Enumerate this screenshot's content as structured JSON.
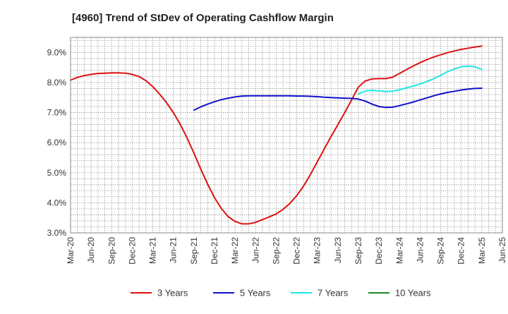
{
  "chart_data": {
    "type": "line",
    "title": "[4960]  Trend of StDev of Operating Cashflow Margin",
    "xlabel": "",
    "ylabel": "",
    "ylim": [
      3.0,
      9.5
    ],
    "y_ticks": [
      "3.0%",
      "4.0%",
      "5.0%",
      "6.0%",
      "7.0%",
      "8.0%",
      "9.0%"
    ],
    "y_tick_values": [
      3.0,
      4.0,
      5.0,
      6.0,
      7.0,
      8.0,
      9.0
    ],
    "x_ticks": [
      "Mar-20",
      "Jun-20",
      "Sep-20",
      "Dec-20",
      "Mar-21",
      "Jun-21",
      "Sep-21",
      "Dec-21",
      "Mar-22",
      "Jun-22",
      "Sep-22",
      "Dec-22",
      "Mar-23",
      "Jun-23",
      "Sep-23",
      "Dec-23",
      "Mar-24",
      "Jun-24",
      "Sep-24",
      "Dec-24",
      "Mar-25",
      "Jun-25"
    ],
    "grid": true,
    "legend_position": "bottom",
    "series": [
      {
        "name": "3 Years",
        "color": "#dd1111",
        "x": [
          "Mar-20",
          "Apr-20",
          "May-20",
          "Jun-20",
          "Jul-20",
          "Aug-20",
          "Sep-20",
          "Oct-20",
          "Nov-20",
          "Dec-20",
          "Jan-21",
          "Feb-21",
          "Mar-21",
          "Apr-21",
          "May-21",
          "Jun-21",
          "Jul-21",
          "Aug-21",
          "Sep-21",
          "Oct-21",
          "Nov-21",
          "Dec-21",
          "Jan-22",
          "Feb-22",
          "Mar-22",
          "Apr-22",
          "May-22",
          "Jun-22",
          "Jul-22",
          "Aug-22",
          "Sep-22",
          "Oct-22",
          "Nov-22",
          "Dec-22",
          "Jan-23",
          "Feb-23",
          "Mar-23",
          "Apr-23",
          "May-23",
          "Jun-23",
          "Jul-23",
          "Aug-23",
          "Sep-23",
          "Oct-23",
          "Nov-23",
          "Dec-23",
          "Jan-24",
          "Feb-24",
          "Mar-24",
          "Apr-24",
          "May-24",
          "Jun-24",
          "Jul-24",
          "Aug-24",
          "Sep-24",
          "Oct-24",
          "Nov-24",
          "Dec-24",
          "Jan-25",
          "Feb-25",
          "Mar-25"
        ],
        "values": [
          8.08,
          8.17,
          8.23,
          8.27,
          8.3,
          8.31,
          8.32,
          8.32,
          8.31,
          8.27,
          8.2,
          8.06,
          7.86,
          7.61,
          7.33,
          7.0,
          6.61,
          6.16,
          5.65,
          5.12,
          4.62,
          4.17,
          3.81,
          3.54,
          3.38,
          3.3,
          3.3,
          3.35,
          3.44,
          3.53,
          3.63,
          3.78,
          3.98,
          4.24,
          4.56,
          4.94,
          5.36,
          5.78,
          6.2,
          6.6,
          7.0,
          7.42,
          7.85,
          8.05,
          8.12,
          8.13,
          8.13,
          8.18,
          8.3,
          8.43,
          8.55,
          8.66,
          8.76,
          8.85,
          8.92,
          8.99,
          9.05,
          9.1,
          9.14,
          9.18,
          9.21
        ]
      },
      {
        "name": "5 Years",
        "color": "#1111cc",
        "x": [
          "Sep-21",
          "Oct-21",
          "Nov-21",
          "Dec-21",
          "Jan-22",
          "Feb-22",
          "Mar-22",
          "Apr-22",
          "May-22",
          "Jun-22",
          "Jul-22",
          "Aug-22",
          "Sep-22",
          "Oct-22",
          "Nov-22",
          "Dec-22",
          "Jan-23",
          "Feb-23",
          "Mar-23",
          "Apr-23",
          "May-23",
          "Jun-23",
          "Jul-23",
          "Aug-23",
          "Sep-23",
          "Oct-23",
          "Nov-23",
          "Dec-23",
          "Jan-24",
          "Feb-24",
          "Mar-24",
          "Apr-24",
          "May-24",
          "Jun-24",
          "Jul-24",
          "Aug-24",
          "Sep-24",
          "Oct-24",
          "Nov-24",
          "Dec-24",
          "Jan-25",
          "Feb-25",
          "Mar-25"
        ],
        "values": [
          7.08,
          7.19,
          7.28,
          7.36,
          7.43,
          7.48,
          7.52,
          7.55,
          7.56,
          7.56,
          7.56,
          7.56,
          7.56,
          7.56,
          7.56,
          7.55,
          7.55,
          7.54,
          7.53,
          7.51,
          7.5,
          7.49,
          7.48,
          7.47,
          7.45,
          7.38,
          7.28,
          7.2,
          7.17,
          7.18,
          7.23,
          7.29,
          7.35,
          7.42,
          7.49,
          7.56,
          7.62,
          7.67,
          7.71,
          7.75,
          7.78,
          7.8,
          7.81
        ]
      },
      {
        "name": "7 Years",
        "color": "#22e6e6",
        "x": [
          "Sep-23",
          "Oct-23",
          "Nov-23",
          "Dec-23",
          "Jan-24",
          "Feb-24",
          "Mar-24",
          "Apr-24",
          "May-24",
          "Jun-24",
          "Jul-24",
          "Aug-24",
          "Sep-24",
          "Oct-24",
          "Nov-24",
          "Dec-24",
          "Jan-25",
          "Feb-25",
          "Mar-25"
        ],
        "values": [
          7.62,
          7.72,
          7.74,
          7.72,
          7.7,
          7.71,
          7.76,
          7.82,
          7.88,
          7.95,
          8.03,
          8.13,
          8.24,
          8.36,
          8.45,
          8.52,
          8.55,
          8.52,
          8.43
        ]
      },
      {
        "name": "10 Years",
        "color": "#228822",
        "x": [],
        "values": []
      }
    ]
  }
}
